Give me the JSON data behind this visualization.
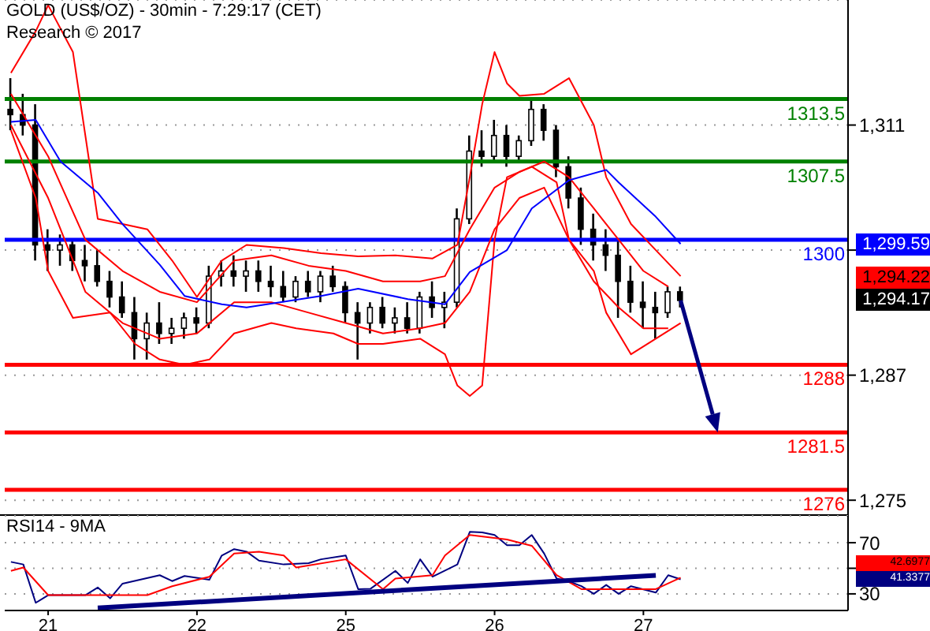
{
  "chart_data": [
    {
      "type": "candlestick",
      "title": "GOLD (US$/OZ) - 30min - 7:29:17 (CET)",
      "subtitle": "Research © 2017",
      "categories": [
        null,
        null,
        null,
        null,
        null,
        null,
        null,
        null,
        null,
        null,
        null,
        null,
        null,
        null,
        null,
        null,
        null,
        null,
        null,
        null,
        null,
        null,
        null,
        null,
        null,
        null,
        null,
        null,
        null,
        null,
        null,
        null,
        null,
        null,
        null,
        null,
        null,
        null,
        null,
        null,
        null,
        null,
        null,
        null,
        null,
        null,
        null,
        null,
        null,
        null,
        null,
        null,
        null,
        null,
        null
      ],
      "ohlc": [
        [
          1312.5,
          1315.5,
          1310.5,
          1312
        ],
        [
          1312,
          1314,
          1310,
          1311
        ],
        [
          1311,
          1313,
          1298,
          1299.5
        ],
        [
          1299.5,
          1301,
          1297,
          1299
        ],
        [
          1299,
          1300.5,
          1297.5,
          1299.5
        ],
        [
          1299.5,
          1300,
          1297,
          1298
        ],
        [
          1298,
          1299.5,
          1296,
          1297.5
        ],
        [
          1297.5,
          1299,
          1295.5,
          1296
        ],
        [
          1296,
          1297,
          1293.5,
          1294.5
        ],
        [
          1294.5,
          1296,
          1292.5,
          1293
        ],
        [
          1293,
          1294.5,
          1288.5,
          1290.5
        ],
        [
          1290.5,
          1293,
          1288.5,
          1292
        ],
        [
          1292,
          1294,
          1290,
          1291
        ],
        [
          1291,
          1292.5,
          1290,
          1291.5
        ],
        [
          1291.5,
          1293,
          1290.5,
          1292.5
        ],
        [
          1292.5,
          1293.5,
          1291,
          1292
        ],
        [
          1292,
          1297.5,
          1291.5,
          1296.5
        ],
        [
          1296.5,
          1298,
          1295.5,
          1297
        ],
        [
          1297,
          1298.5,
          1295.5,
          1296.5
        ],
        [
          1296.5,
          1298,
          1295,
          1297
        ],
        [
          1297,
          1298,
          1295,
          1296
        ],
        [
          1296,
          1297.5,
          1294.5,
          1295.5
        ],
        [
          1295.5,
          1297,
          1294,
          1294.5
        ],
        [
          1294.5,
          1296.5,
          1294,
          1296
        ],
        [
          1296,
          1297,
          1294.5,
          1295
        ],
        [
          1295,
          1297,
          1294,
          1296.5
        ],
        [
          1296.5,
          1297.5,
          1295,
          1295.5
        ],
        [
          1295.5,
          1296,
          1292,
          1293
        ],
        [
          1293,
          1294,
          1288.5,
          1292
        ],
        [
          1292,
          1294,
          1291,
          1293.5
        ],
        [
          1293.5,
          1294.5,
          1291.5,
          1292
        ],
        [
          1292,
          1293.5,
          1291,
          1292.5
        ],
        [
          1292.5,
          1294,
          1291,
          1291.5
        ],
        [
          1291.5,
          1295,
          1291,
          1294.5
        ],
        [
          1294.5,
          1296,
          1292.5,
          1293.5
        ],
        [
          1293.5,
          1295,
          1291.5,
          1294
        ],
        [
          1294,
          1303,
          1293.5,
          1302
        ],
        [
          1302,
          1310,
          1301.5,
          1308.5
        ],
        [
          1308.5,
          1310.5,
          1307,
          1308
        ],
        [
          1308,
          1311.5,
          1307.5,
          1310
        ],
        [
          1310,
          1311,
          1307,
          1308
        ],
        [
          1308,
          1310,
          1307.5,
          1309.5
        ],
        [
          1309.5,
          1313.5,
          1309,
          1312.5
        ],
        [
          1312.5,
          1313,
          1309.5,
          1310.5
        ],
        [
          1310.5,
          1311,
          1306,
          1307
        ],
        [
          1307,
          1308,
          1303,
          1304
        ],
        [
          1304,
          1305,
          1299.5,
          1301
        ],
        [
          1301,
          1302.5,
          1298,
          1299.5
        ],
        [
          1299.5,
          1301,
          1297,
          1298.5
        ],
        [
          1298.5,
          1300,
          1292.5,
          1296
        ],
        [
          1296,
          1297.5,
          1293,
          1294
        ],
        [
          1294,
          1296,
          1291.5,
          1293.5
        ],
        [
          1293.5,
          1295,
          1290.5,
          1293
        ],
        [
          1293,
          1295.5,
          1292.5,
          1295
        ],
        [
          1295,
          1295.5,
          1293.5,
          1294.17
        ]
      ],
      "series": [
        {
          "type": "line",
          "color": "#ff0000",
          "values": [
            1316,
            null,
            1320,
            1322.5,
            null,
            1318,
            1310,
            1302,
            null,
            1301.5,
            null,
            1301,
            null,
            1298,
            null,
            1294.5,
            null,
            1298,
            null,
            1299.5,
            null,
            null,
            1299.2,
            null,
            null,
            1298.7,
            null,
            null,
            1298.4,
            null,
            null,
            1298.5,
            null,
            null,
            1298.2,
            null,
            1299.5,
            1306,
            1313,
            1318,
            1315,
            1313.8,
            null,
            1314,
            null,
            1315.5,
            null,
            1311,
            1306,
            null,
            1301.5,
            null,
            1299,
            null,
            1296.5
          ]
        },
        {
          "type": "line",
          "color": "#ff0000",
          "values": [
            1310.5,
            null,
            1304,
            1297,
            null,
            1292.5,
            null,
            null,
            1293,
            null,
            1290,
            null,
            1288.5,
            null,
            1288,
            null,
            1288.5,
            null,
            1291,
            null,
            null,
            1292,
            null,
            1291.5,
            null,
            null,
            1291,
            null,
            1290,
            null,
            1290,
            null,
            null,
            1290.5,
            null,
            1289,
            1286,
            1285,
            1286,
            1300,
            1306,
            null,
            1307,
            null,
            1305.5,
            1300,
            null,
            1297,
            1293,
            null,
            1289,
            null,
            1290.5,
            null,
            1292
          ]
        },
        {
          "type": "line",
          "color": "#ff0000",
          "values": [
            1314,
            null,
            null,
            1308,
            null,
            null,
            1300,
            null,
            null,
            1297,
            null,
            null,
            1295,
            null,
            null,
            1294,
            null,
            null,
            1298,
            null,
            null,
            1298.5,
            null,
            null,
            1297.5,
            null,
            null,
            1297,
            null,
            null,
            1296,
            null,
            null,
            1296,
            null,
            1296.5,
            null,
            1301,
            null,
            1305,
            null,
            1306.5,
            null,
            1307.5,
            null,
            1306,
            null,
            1303,
            null,
            1300,
            null,
            1297,
            null,
            1295.5,
            null
          ]
        },
        {
          "type": "line",
          "color": "#ff0000",
          "values": [
            1311,
            null,
            null,
            1304,
            null,
            null,
            1295,
            null,
            null,
            1292,
            null,
            null,
            1290.5,
            null,
            null,
            1291,
            null,
            null,
            1294,
            null,
            null,
            1294,
            null,
            null,
            1293,
            null,
            null,
            1292,
            null,
            null,
            1291,
            null,
            null,
            1291.5,
            null,
            1292,
            null,
            1295,
            null,
            1301,
            null,
            1304,
            null,
            1305,
            null,
            1300,
            null,
            1296,
            null,
            1293.5,
            null,
            1291.5,
            null,
            1291.5,
            null
          ]
        },
        {
          "type": "line",
          "color": "#0000ff",
          "values": [
            1311.3,
            null,
            1311.5,
            null,
            1307.5,
            null,
            null,
            1304.5,
            null,
            1301.5,
            null,
            null,
            1297.6,
            null,
            1294.6,
            null,
            null,
            1293.8,
            null,
            1293.5,
            null,
            null,
            null,
            null,
            null,
            1294.6,
            null,
            null,
            1295.3,
            null,
            null,
            null,
            1294.3,
            null,
            null,
            1293.8,
            null,
            1296.9,
            null,
            null,
            1299,
            null,
            1303,
            null,
            null,
            1305.7,
            null,
            null,
            1306.7,
            1305.5,
            null,
            null,
            1302.2,
            null,
            1299.59
          ]
        }
      ],
      "ylim": [
        1273.5,
        1323
      ],
      "yticks": [
        {
          "value": 1311,
          "label": "1,311"
        },
        {
          "value": 1299,
          "label": null
        },
        {
          "value": 1287,
          "label": "1,287"
        },
        {
          "value": 1275,
          "label": "1,275"
        }
      ],
      "ref_lines": [
        {
          "axis": "y",
          "value": 1313.5,
          "label": "1313.5",
          "color": "#008000"
        },
        {
          "axis": "y",
          "value": 1307.5,
          "label": "1307.5",
          "color": "#008000"
        },
        {
          "axis": "y",
          "value": 1300,
          "label": "1300",
          "color": "#0000ff"
        },
        {
          "axis": "y",
          "value": 1288,
          "label": "1288",
          "color": "#ff0000"
        },
        {
          "axis": "y",
          "value": 1281.5,
          "label": "1281.5",
          "color": "#ff0000"
        },
        {
          "axis": "y",
          "value": 1276,
          "label": "1276",
          "color": "#ff0000"
        }
      ],
      "annotations": [
        "1,299.59",
        "1,294.22",
        "1,294.17"
      ],
      "grid": "y",
      "tick_labels": "y"
    },
    {
      "type": "line",
      "title": "RSI14 - 9MA",
      "categories": [
        null,
        null,
        null,
        "21",
        null,
        null,
        null,
        null,
        null,
        null,
        null,
        null,
        null,
        null,
        null,
        "22",
        null,
        null,
        null,
        null,
        null,
        null,
        null,
        null,
        null,
        null,
        null,
        "25",
        null,
        null,
        null,
        null,
        null,
        null,
        null,
        null,
        null,
        null,
        null,
        "26",
        null,
        null,
        null,
        null,
        null,
        null,
        null,
        null,
        null,
        null,
        null,
        "27",
        null,
        null,
        null
      ],
      "series": [
        {
          "color": "#000080",
          "values": [
            55,
            53,
            23,
            29,
            29,
            null,
            29,
            35,
            26.5,
            38,
            null,
            null,
            44.6,
            40,
            44,
            null,
            41,
            60,
            65,
            63,
            56,
            null,
            53,
            null,
            54,
            57,
            null,
            60,
            33.7,
            34,
            null,
            48,
            38.5,
            57,
            43.4,
            null,
            53,
            78.5,
            78,
            76,
            68,
            68,
            76,
            61.5,
            42,
            39.7,
            36,
            30,
            37,
            30,
            36,
            null,
            31,
            44.6,
            41.3377
          ]
        },
        {
          "color": "#ff0000",
          "values": [
            48,
            50.6,
            null,
            29,
            null,
            null,
            null,
            29,
            null,
            null,
            null,
            29,
            null,
            36,
            null,
            null,
            43.4,
            null,
            61.5,
            null,
            63,
            null,
            60,
            50.6,
            null,
            null,
            null,
            57,
            null,
            null,
            33.7,
            42,
            null,
            null,
            44.6,
            60,
            null,
            76,
            null,
            null,
            72.5,
            null,
            67.6,
            null,
            44.6,
            null,
            33.7,
            null,
            null,
            33.7,
            null,
            null,
            33.7,
            null,
            42.6977
          ]
        },
        {
          "color": "#000080",
          "values": [
            null,
            null,
            null,
            null,
            null,
            null,
            null,
            19,
            null,
            null,
            null,
            null,
            null,
            null,
            null,
            null,
            null,
            null,
            null,
            null,
            null,
            null,
            null,
            null,
            null,
            null,
            null,
            null,
            null,
            null,
            null,
            null,
            null,
            null,
            null,
            null,
            null,
            null,
            null,
            null,
            null,
            null,
            null,
            null,
            null,
            null,
            null,
            null,
            null,
            null,
            null,
            null,
            44.5,
            null,
            null
          ]
        }
      ],
      "ylim": [
        17,
        91
      ],
      "yticks": [
        70,
        {
          "value": 50,
          "label": null
        },
        30
      ],
      "annotations": [
        "42.6977",
        "41.3377"
      ],
      "grid": "y"
    }
  ]
}
